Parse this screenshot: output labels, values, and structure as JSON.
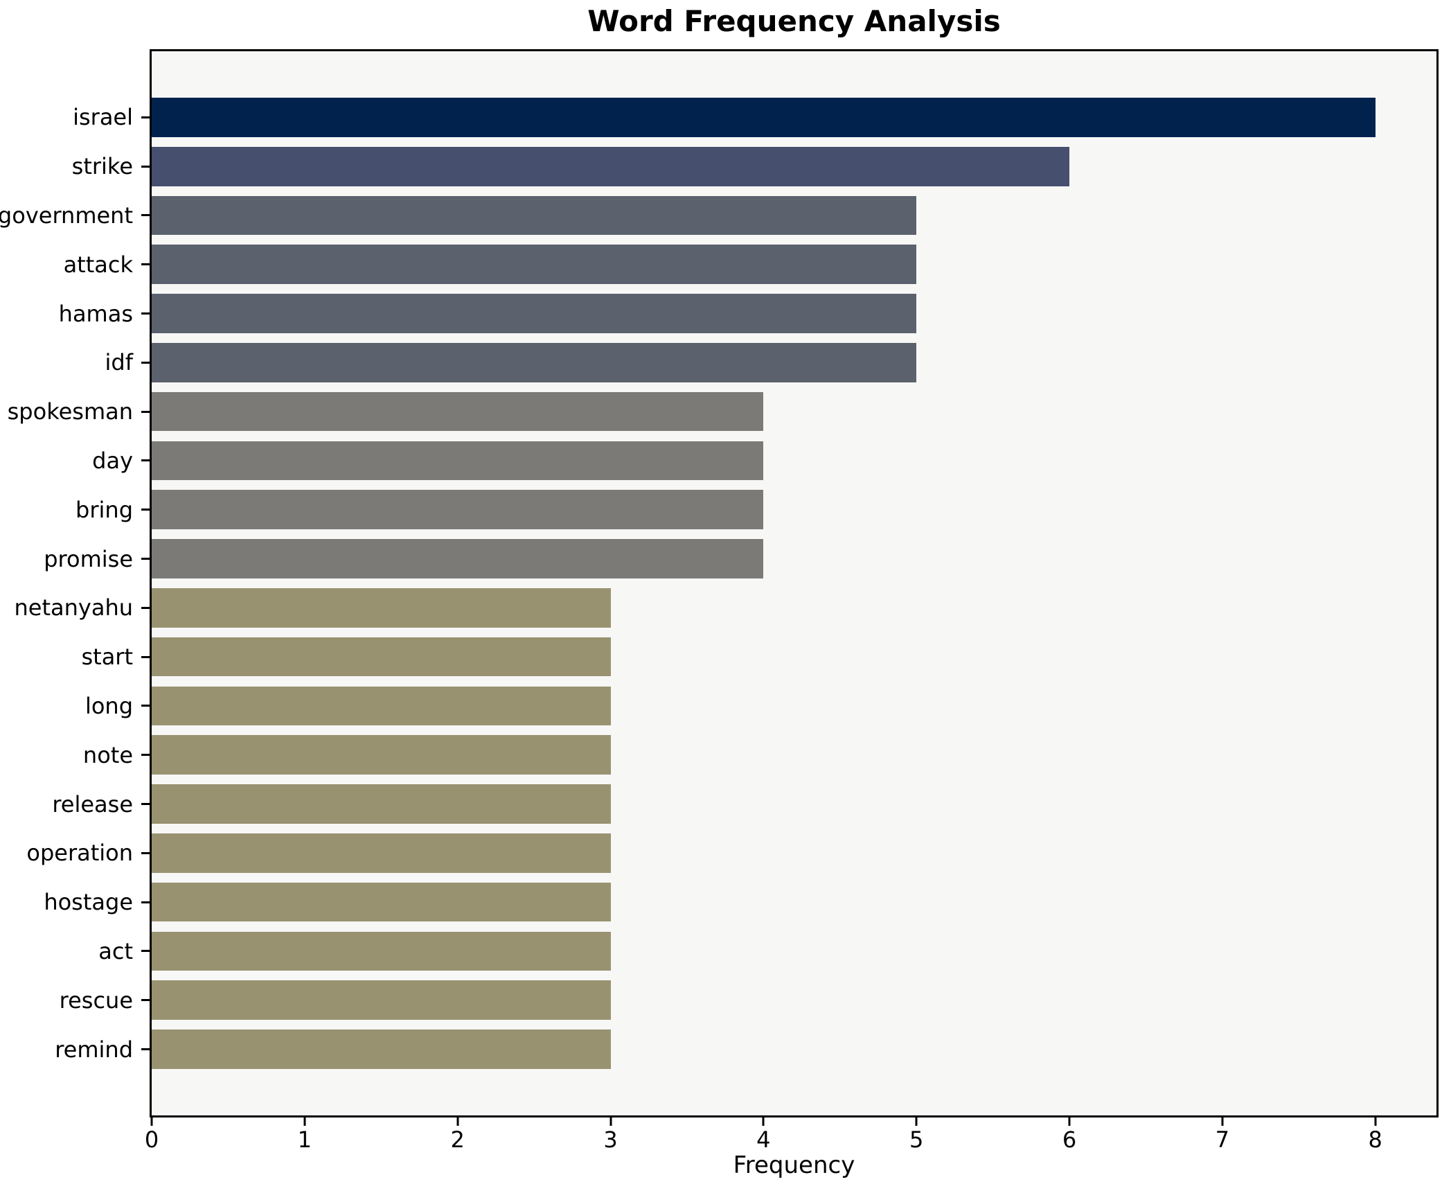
{
  "chart_data": {
    "type": "bar",
    "orientation": "horizontal",
    "title": "Word Frequency Analysis",
    "xlabel": "Frequency",
    "ylabel": "",
    "categories": [
      "israel",
      "strike",
      "government",
      "attack",
      "hamas",
      "idf",
      "spokesman",
      "day",
      "bring",
      "promise",
      "netanyahu",
      "start",
      "long",
      "note",
      "release",
      "operation",
      "hostage",
      "act",
      "rescue",
      "remind"
    ],
    "values": [
      8,
      6,
      5,
      5,
      5,
      5,
      4,
      4,
      4,
      4,
      3,
      3,
      3,
      3,
      3,
      3,
      3,
      3,
      3,
      3
    ],
    "bar_colors": [
      "#01224d",
      "#464f6e",
      "#5c616e",
      "#5c616e",
      "#5c616e",
      "#5c616e",
      "#7b7a76",
      "#7b7a76",
      "#7b7a76",
      "#7b7a76",
      "#989270",
      "#989270",
      "#989270",
      "#989270",
      "#989270",
      "#989270",
      "#989270",
      "#989270",
      "#989270",
      "#989270"
    ],
    "xticks": [
      0,
      1,
      2,
      3,
      4,
      5,
      6,
      7,
      8
    ],
    "xlim": [
      0,
      8.4
    ],
    "grid": false,
    "legend_position": "none",
    "plot_background": "#f7f7f6",
    "figure_background": "#ffffff",
    "spine_color": "#000000",
    "bar_height_ratio": 0.8
  }
}
